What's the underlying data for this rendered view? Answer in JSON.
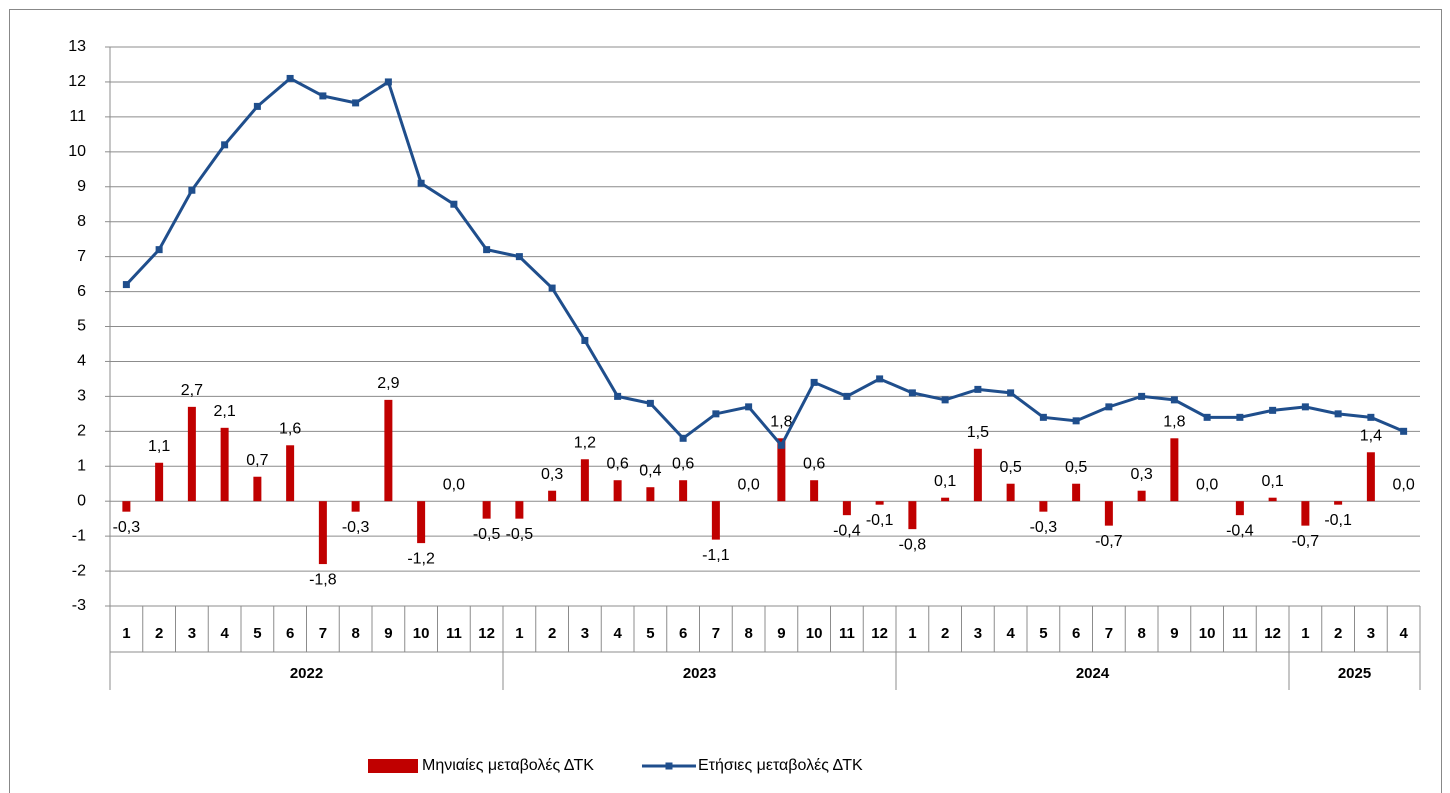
{
  "chart_data": {
    "type": "bar",
    "groups": [
      {
        "name": "2022",
        "categories": [
          "1",
          "2",
          "3",
          "4",
          "5",
          "6",
          "7",
          "8",
          "9",
          "10",
          "11",
          "12"
        ]
      },
      {
        "name": "2023",
        "categories": [
          "1",
          "2",
          "3",
          "4",
          "5",
          "6",
          "7",
          "8",
          "9",
          "10",
          "11",
          "12"
        ]
      },
      {
        "name": "2024",
        "categories": [
          "1",
          "2",
          "3",
          "4",
          "5",
          "6",
          "7",
          "8",
          "9",
          "10",
          "11",
          "12"
        ]
      },
      {
        "name": "2025",
        "categories": [
          "1",
          "2",
          "3",
          "4"
        ]
      }
    ],
    "series": [
      {
        "name": "Μηνιαίες μεταβολές ΔΤΚ",
        "type": "bar",
        "color": "#c00000",
        "values": [
          -0.3,
          1.1,
          2.7,
          2.1,
          0.7,
          1.6,
          -1.8,
          -0.3,
          2.9,
          -1.2,
          0.0,
          -0.5,
          -0.5,
          0.3,
          1.2,
          0.6,
          0.4,
          0.6,
          -1.1,
          0.0,
          1.8,
          0.6,
          -0.4,
          -0.1,
          -0.8,
          0.1,
          1.5,
          0.5,
          -0.3,
          0.5,
          -0.7,
          0.3,
          1.8,
          0.0,
          -0.4,
          0.1,
          -0.7,
          -0.1,
          1.4,
          0.0
        ],
        "value_labels": [
          "-0,3",
          "1,1",
          "2,7",
          "2,1",
          "0,7",
          "1,6",
          "-1,8",
          "-0,3",
          "2,9",
          "-1,2",
          "0,0",
          "-0,5",
          "-0,5",
          "0,3",
          "1,2",
          "0,6",
          "0,4",
          "0,6",
          "-1,1",
          "0,0",
          "1,8",
          "0,6",
          "-0,4",
          "-0,1",
          "-0,8",
          "0,1",
          "1,5",
          "0,5",
          "-0,3",
          "0,5",
          "-0,7",
          "0,3",
          "1,8",
          "0,0",
          "-0,4",
          "0,1",
          "-0,7",
          "-0,1",
          "1,4",
          "0,0"
        ]
      },
      {
        "name": "Ετήσιες μεταβολές ΔΤΚ",
        "type": "line",
        "color": "#1f4e8c",
        "values": [
          6.2,
          7.2,
          8.9,
          10.2,
          11.3,
          12.1,
          11.6,
          11.4,
          12.0,
          9.1,
          8.5,
          7.2,
          7.0,
          6.1,
          4.6,
          3.0,
          2.8,
          1.8,
          2.5,
          2.7,
          1.6,
          3.4,
          3.0,
          3.5,
          3.1,
          2.9,
          3.2,
          3.1,
          2.4,
          2.3,
          2.7,
          3.0,
          2.9,
          2.4,
          2.4,
          2.6,
          2.7,
          2.5,
          2.4,
          2.0
        ]
      }
    ],
    "ylim": [
      -3,
      13
    ],
    "yticks": [
      -3,
      -2,
      -1,
      0,
      1,
      2,
      3,
      4,
      5,
      6,
      7,
      8,
      9,
      10,
      11,
      12,
      13
    ],
    "grid": true,
    "legend": "bottom"
  }
}
